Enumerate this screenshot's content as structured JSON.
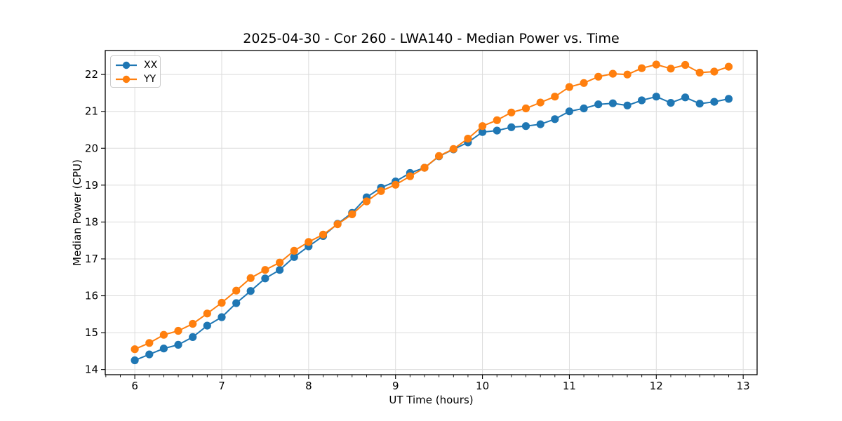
{
  "title": "2025-04-30 - Cor 260 - LWA140 - Median Power vs. Time",
  "colors": {
    "xx_series": "#1f77b4",
    "yy_series": "#ff7f0e",
    "grid": "#dcdcdc",
    "axis": "#000000",
    "background": "#ffffff"
  },
  "chart_data": {
    "type": "line",
    "title": "2025-04-30 - Cor 260 - LWA140 - Median Power vs. Time",
    "xlabel": "UT Time (hours)",
    "ylabel": "Median Power (CPU)",
    "xlim": [
      5.66,
      13.16
    ],
    "ylim": [
      13.86,
      22.65
    ],
    "xticks": [
      6,
      7,
      8,
      9,
      10,
      11,
      12,
      13
    ],
    "yticks": [
      14,
      15,
      16,
      17,
      18,
      19,
      20,
      21,
      22
    ],
    "x_minor_step": 0.16667,
    "grid": true,
    "legend_position": "upper-left",
    "marker": "circle",
    "x": [
      6.0,
      6.167,
      6.333,
      6.5,
      6.667,
      6.833,
      7.0,
      7.167,
      7.333,
      7.5,
      7.667,
      7.833,
      8.0,
      8.167,
      8.333,
      8.5,
      8.667,
      8.833,
      9.0,
      9.167,
      9.333,
      9.5,
      9.667,
      9.833,
      10.0,
      10.167,
      10.333,
      10.5,
      10.667,
      10.833,
      11.0,
      11.167,
      11.333,
      11.5,
      11.667,
      11.833,
      12.0,
      12.167,
      12.333,
      12.5,
      12.667,
      12.833
    ],
    "series": [
      {
        "name": "XX",
        "color": "#1f77b4",
        "values": [
          14.25,
          14.41,
          14.57,
          14.67,
          14.88,
          15.19,
          15.42,
          15.8,
          16.13,
          16.47,
          16.7,
          17.05,
          17.34,
          17.62,
          17.95,
          18.25,
          18.67,
          18.93,
          19.1,
          19.33,
          19.47,
          19.78,
          19.97,
          20.16,
          20.44,
          20.48,
          20.57,
          20.6,
          20.65,
          20.79,
          21.0,
          21.08,
          21.19,
          21.22,
          21.16,
          21.3,
          21.4,
          21.23,
          21.38,
          21.21,
          21.26,
          21.34
        ]
      },
      {
        "name": "YY",
        "color": "#ff7f0e",
        "values": [
          14.55,
          14.72,
          14.94,
          15.05,
          15.24,
          15.52,
          15.81,
          16.14,
          16.48,
          16.7,
          16.9,
          17.22,
          17.46,
          17.66,
          17.94,
          18.21,
          18.56,
          18.84,
          19.01,
          19.24,
          19.47,
          19.79,
          19.98,
          20.26,
          20.6,
          20.76,
          20.97,
          21.08,
          21.24,
          21.4,
          21.66,
          21.77,
          21.94,
          22.02,
          22.0,
          22.17,
          22.27,
          22.16,
          22.26,
          22.05,
          22.08,
          22.21
        ]
      }
    ]
  }
}
